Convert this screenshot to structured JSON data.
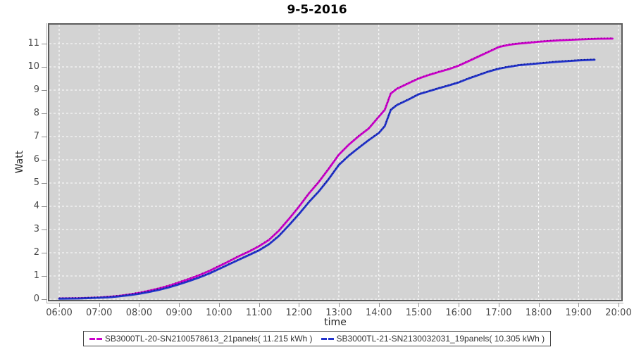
{
  "title": "9-5-2016",
  "axes": {
    "y_label": "Watt",
    "x_label": "time",
    "y_ticks": [
      "0",
      "1",
      "2",
      "3",
      "4",
      "5",
      "6",
      "7",
      "8",
      "9",
      "10",
      "11"
    ],
    "x_ticks": [
      "06:00",
      "07:00",
      "08:00",
      "09:00",
      "10:00",
      "11:00",
      "12:00",
      "13:00",
      "14:00",
      "15:00",
      "16:00",
      "17:00",
      "18:00",
      "19:00",
      "20:00"
    ]
  },
  "legend": {
    "entries": [
      {
        "label": "SB3000TL-20-SN2100578613_21panels( 11.215 kWh )",
        "color": "#cc00cc",
        "dot_color": "#8a008a"
      },
      {
        "label": "SB3000TL-21-SN2130032031_19panels( 10.305 kWh )",
        "color": "#2233cc",
        "dot_color": "#101a80"
      }
    ]
  },
  "colors": {
    "plot_bg": "#d3d3d3",
    "grid": "#ffffff",
    "plot_border": "#5c5c5c",
    "tick_text": "#4a4a4a"
  },
  "chart_data": {
    "type": "line",
    "title": "9-5-2016",
    "xlabel": "time",
    "ylabel": "Watt",
    "x_range_hours": [
      6,
      20
    ],
    "ylim": [
      0,
      11.8
    ],
    "grid": true,
    "legend_position": "bottom",
    "series": [
      {
        "name": "SB3000TL-20-SN2100578613_21panels( 11.215 kWh )",
        "color": "#cc00cc",
        "final_kwh": 11.215,
        "points": [
          [
            6.0,
            0.03
          ],
          [
            6.5,
            0.04
          ],
          [
            7.0,
            0.07
          ],
          [
            7.25,
            0.1
          ],
          [
            7.5,
            0.14
          ],
          [
            7.75,
            0.2
          ],
          [
            8.0,
            0.27
          ],
          [
            8.25,
            0.36
          ],
          [
            8.5,
            0.46
          ],
          [
            8.75,
            0.58
          ],
          [
            9.0,
            0.72
          ],
          [
            9.25,
            0.87
          ],
          [
            9.5,
            1.03
          ],
          [
            9.75,
            1.21
          ],
          [
            10.0,
            1.42
          ],
          [
            10.25,
            1.63
          ],
          [
            10.5,
            1.85
          ],
          [
            10.75,
            2.05
          ],
          [
            11.0,
            2.28
          ],
          [
            11.25,
            2.55
          ],
          [
            11.5,
            2.95
          ],
          [
            11.75,
            3.45
          ],
          [
            12.0,
            3.98
          ],
          [
            12.25,
            4.55
          ],
          [
            12.5,
            5.05
          ],
          [
            12.75,
            5.62
          ],
          [
            13.0,
            6.22
          ],
          [
            13.25,
            6.65
          ],
          [
            13.5,
            7.02
          ],
          [
            13.75,
            7.35
          ],
          [
            14.0,
            7.85
          ],
          [
            14.15,
            8.15
          ],
          [
            14.3,
            8.85
          ],
          [
            14.45,
            9.05
          ],
          [
            14.75,
            9.3
          ],
          [
            15.0,
            9.5
          ],
          [
            15.25,
            9.65
          ],
          [
            15.5,
            9.78
          ],
          [
            15.75,
            9.9
          ],
          [
            16.0,
            10.05
          ],
          [
            16.25,
            10.25
          ],
          [
            16.5,
            10.45
          ],
          [
            16.75,
            10.65
          ],
          [
            17.0,
            10.85
          ],
          [
            17.25,
            10.95
          ],
          [
            17.5,
            11.0
          ],
          [
            18.0,
            11.08
          ],
          [
            18.5,
            11.14
          ],
          [
            19.0,
            11.18
          ],
          [
            19.5,
            11.21
          ],
          [
            19.85,
            11.215
          ]
        ]
      },
      {
        "name": "SB3000TL-21-SN2130032031_19panels( 10.305 kWh )",
        "color": "#2233cc",
        "final_kwh": 10.305,
        "points": [
          [
            6.0,
            0.02
          ],
          [
            6.5,
            0.03
          ],
          [
            7.0,
            0.06
          ],
          [
            7.25,
            0.08
          ],
          [
            7.5,
            0.12
          ],
          [
            7.75,
            0.17
          ],
          [
            8.0,
            0.23
          ],
          [
            8.25,
            0.31
          ],
          [
            8.5,
            0.4
          ],
          [
            8.75,
            0.51
          ],
          [
            9.0,
            0.64
          ],
          [
            9.25,
            0.78
          ],
          [
            9.5,
            0.93
          ],
          [
            9.75,
            1.1
          ],
          [
            10.0,
            1.3
          ],
          [
            10.25,
            1.5
          ],
          [
            10.5,
            1.7
          ],
          [
            10.75,
            1.9
          ],
          [
            11.0,
            2.1
          ],
          [
            11.25,
            2.36
          ],
          [
            11.5,
            2.72
          ],
          [
            11.75,
            3.18
          ],
          [
            12.0,
            3.66
          ],
          [
            12.25,
            4.18
          ],
          [
            12.5,
            4.64
          ],
          [
            12.75,
            5.18
          ],
          [
            13.0,
            5.78
          ],
          [
            13.25,
            6.18
          ],
          [
            13.5,
            6.52
          ],
          [
            13.75,
            6.85
          ],
          [
            14.0,
            7.15
          ],
          [
            14.15,
            7.45
          ],
          [
            14.3,
            8.15
          ],
          [
            14.45,
            8.35
          ],
          [
            14.75,
            8.6
          ],
          [
            15.0,
            8.82
          ],
          [
            15.25,
            8.95
          ],
          [
            15.5,
            9.08
          ],
          [
            15.75,
            9.2
          ],
          [
            16.0,
            9.33
          ],
          [
            16.25,
            9.5
          ],
          [
            16.5,
            9.65
          ],
          [
            16.75,
            9.8
          ],
          [
            17.0,
            9.92
          ],
          [
            17.25,
            10.0
          ],
          [
            17.5,
            10.07
          ],
          [
            18.0,
            10.15
          ],
          [
            18.5,
            10.22
          ],
          [
            19.0,
            10.28
          ],
          [
            19.4,
            10.305
          ]
        ]
      }
    ]
  }
}
